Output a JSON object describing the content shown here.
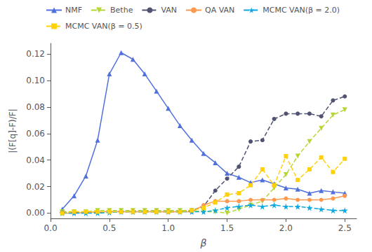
{
  "chart_data": {
    "type": "line",
    "x_label": "β",
    "y_label": "|(F[q]-F)/F|",
    "x": [
      0.1,
      0.2,
      0.3,
      0.4,
      0.5,
      0.6,
      0.7,
      0.8,
      0.9,
      1.0,
      1.1,
      1.2,
      1.3,
      1.4,
      1.5,
      1.6,
      1.7,
      1.8,
      1.9,
      2.0,
      2.1,
      2.2,
      2.3,
      2.4,
      2.5
    ],
    "series": [
      {
        "name": "NMF",
        "marker": "triangle",
        "line_style": "solid",
        "values": [
          0.003,
          0.013,
          0.028,
          0.055,
          0.105,
          0.121,
          0.116,
          0.105,
          0.092,
          0.079,
          0.066,
          0.055,
          0.045,
          0.038,
          0.03,
          0.027,
          0.023,
          0.025,
          0.022,
          0.019,
          0.018,
          0.015,
          0.017,
          0.016,
          0.015
        ]
      },
      {
        "name": "Bethe",
        "marker": "triangle-down",
        "line_style": "dashed",
        "values": [
          0.001,
          0.001,
          0.001,
          0.002,
          0.002,
          0.002,
          0.002,
          0.002,
          0.002,
          0.002,
          0.002,
          0.002,
          0.001,
          0.001,
          0.0,
          0.003,
          0.006,
          0.009,
          0.019,
          0.029,
          0.043,
          0.054,
          0.064,
          0.074,
          0.078
        ]
      },
      {
        "name": "VAN",
        "marker": "circle",
        "line_style": "dashed",
        "values": [
          0.0005,
          0.0005,
          0.0005,
          0.0005,
          0.001,
          0.001,
          0.001,
          0.001,
          0.001,
          0.001,
          0.001,
          0.002,
          0.005,
          0.017,
          0.026,
          0.035,
          0.054,
          0.055,
          0.071,
          0.075,
          0.075,
          0.075,
          0.073,
          0.085,
          0.088
        ]
      },
      {
        "name": "QA VAN",
        "marker": "circle",
        "line_style": "solid",
        "values": [
          0.0,
          0.0,
          0.0005,
          0.001,
          0.001,
          0.001,
          0.001,
          0.001,
          0.001,
          0.001,
          0.001,
          0.001,
          0.006,
          0.009,
          0.009,
          0.009,
          0.01,
          0.01,
          0.01,
          0.011,
          0.01,
          0.01,
          0.01,
          0.011,
          0.013
        ]
      },
      {
        "name": "MCMC VAN(β = 2.0)",
        "marker": "star",
        "line_style": "dashed",
        "values": [
          0.0,
          0.0,
          0.0,
          0.0,
          0.0005,
          0.001,
          0.001,
          0.001,
          0.001,
          0.001,
          0.001,
          0.001,
          0.001,
          0.002,
          0.004,
          0.005,
          0.006,
          0.005,
          0.006,
          0.005,
          0.005,
          0.004,
          0.003,
          0.002,
          0.002
        ]
      },
      {
        "name": "MCMC VAN(β = 0.5)",
        "marker": "square",
        "line_style": "dashed",
        "values": [
          0.0,
          0.001,
          0.001,
          0.001,
          0.001,
          0.001,
          0.001,
          0.001,
          0.001,
          0.001,
          0.001,
          0.002,
          0.004,
          0.008,
          0.014,
          0.015,
          0.021,
          0.033,
          0.021,
          0.043,
          0.025,
          0.033,
          0.042,
          0.031,
          0.041
        ]
      }
    ],
    "xlim": [
      0.0,
      2.6
    ],
    "ylim": [
      -0.004,
      0.128
    ],
    "xticks": [
      {
        "value": 0.0,
        "label": "0.0"
      },
      0.5,
      {
        "value": 1.0,
        "label": "1.0"
      },
      1.5,
      {
        "value": 2.0,
        "label": "2.0"
      },
      2.5
    ],
    "yticks": [
      {
        "value": 0.0,
        "label": "0.00"
      },
      0.02,
      0.04,
      0.06,
      0.08,
      {
        "value": 0.1,
        "label": "0.10"
      },
      0.12
    ],
    "grid": false,
    "legend": "upper left"
  }
}
